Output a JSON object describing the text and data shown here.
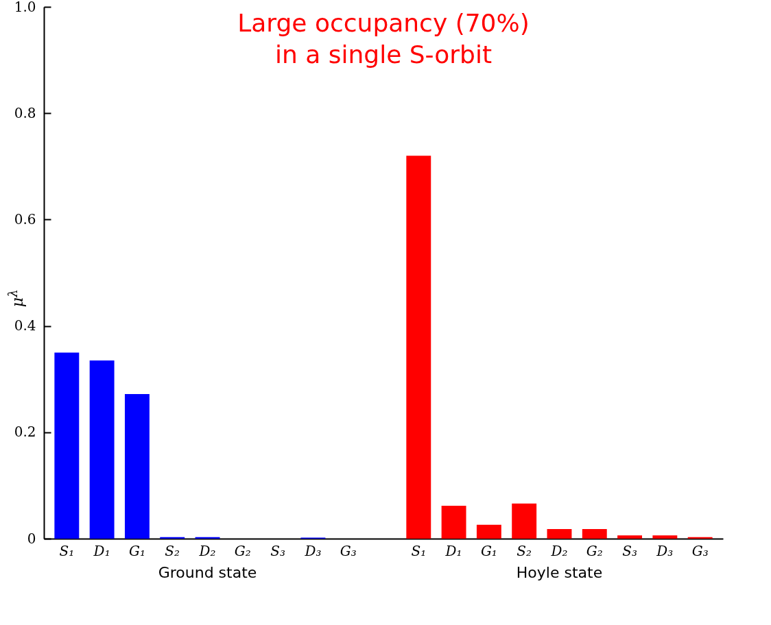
{
  "chart_data": {
    "type": "bar",
    "title": "Large occupancy (70%)\nin a single S-orbit",
    "ylabel": "μ$^{λ}$",
    "categories": [
      "S₁",
      "D₁",
      "G₁",
      "S₂",
      "D₂",
      "G₂",
      "S₃",
      "D₃",
      "G₃",
      null,
      "S₁",
      "D₁",
      "G₁",
      "S₂",
      "D₂",
      "G₂",
      "S₃",
      "D₃",
      "G₃"
    ],
    "series": [
      {
        "color": "#0000ff",
        "values": [
          0.35,
          0.335,
          0.272,
          0.003,
          0.003,
          0,
          0,
          0.002,
          0,
          null,
          null,
          null,
          null,
          null,
          null,
          null,
          null,
          null,
          null
        ]
      },
      {
        "color": "#ff0000",
        "values": [
          null,
          null,
          null,
          null,
          null,
          null,
          null,
          null,
          null,
          null,
          0.72,
          0.062,
          0.026,
          0.066,
          0.018,
          0.018,
          0.006,
          0.006,
          0.003
        ]
      }
    ],
    "annotations": [
      "Ground state",
      "Hoyle state"
    ],
    "ylim": [
      0,
      1
    ],
    "yticks": [
      0,
      0.2,
      0.4,
      0.6,
      0.8,
      {
        "value": 1,
        "label": "1.0"
      }
    ],
    "grid": false,
    "legend": false
  }
}
